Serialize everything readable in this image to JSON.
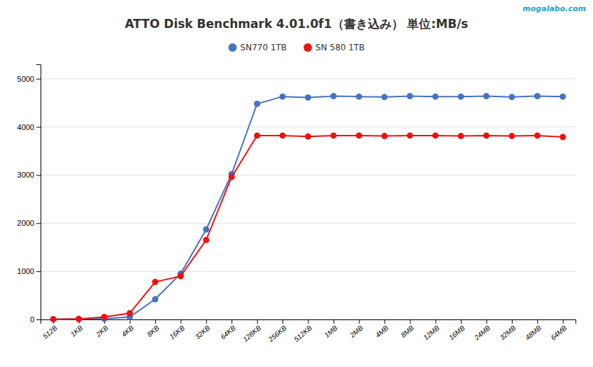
{
  "chart_data": {
    "type": "line",
    "title": "ATTO Disk Benchmark 4.01.0f1（書き込み） 単位:MB/s",
    "annotations": [
      "mogalabo.com"
    ],
    "categories": [
      "512B",
      "1KB",
      "2KB",
      "4KB",
      "8KB",
      "16KB",
      "32KB",
      "64KB",
      "128KB",
      "256KB",
      "512KB",
      "1MB",
      "2MB",
      "4MB",
      "8MB",
      "12MB",
      "16MB",
      "24MB",
      "32MB",
      "48MB",
      "64MB"
    ],
    "series": [
      {
        "name": "SN770 1TB",
        "color": "#4472C4",
        "marker": "circle",
        "line_style": "solid",
        "values": [
          5,
          10,
          15,
          50,
          420,
          950,
          1870,
          3020,
          4480,
          4630,
          4610,
          4640,
          4630,
          4620,
          4640,
          4630,
          4630,
          4640,
          4620,
          4640,
          4630
        ]
      },
      {
        "name": "SN 580 1TB",
        "color": "#EE1111",
        "marker": "circle",
        "line_style": "solid",
        "values": [
          5,
          10,
          50,
          130,
          780,
          900,
          1650,
          2960,
          3820,
          3820,
          3800,
          3820,
          3820,
          3810,
          3820,
          3820,
          3810,
          3820,
          3810,
          3820,
          3790
        ]
      }
    ],
    "ylim": [
      0,
      5300
    ],
    "yticks": [
      0,
      1000,
      2000,
      3000,
      4000,
      5000
    ],
    "grid": true,
    "legend": "top"
  }
}
